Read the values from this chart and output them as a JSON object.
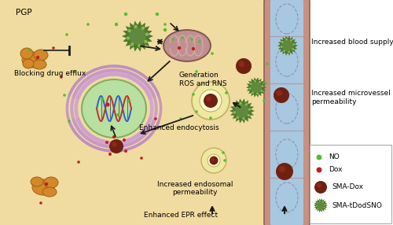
{
  "bg_color": "#FFFFFF",
  "cell_color": "#F0DCA0",
  "cell_edge_color": "#C8A860",
  "vessel_outer_color": "#C89080",
  "vessel_lumen_color": "#A8C8E0",
  "vessel_divider_color": "#B09090",
  "nucleus_color": "#B8E0A0",
  "nucleus_edge": "#80B060",
  "er_color": "#C8A0C8",
  "mito_color": "#C09090",
  "mito_inner": "#D4A8A8",
  "endosome_color": "#F0ECC0",
  "endosome_edge": "#C0B060",
  "pgp_color": "#D4882A",
  "pgp_edge": "#A06010",
  "legend_box_color": "#FFFFFF",
  "NO_color": "#50C030",
  "Dox_color": "#C02020",
  "SMADox_color": "#702010",
  "SMAtDodSNO_color": "#507830",
  "SMAtDodSNO_spike": "#406020",
  "SMAtDodSNO_dot": "#80C040",
  "arrow_color": "#1A1A1A",
  "labels": {
    "pgp": "PGP",
    "blocking": "Blocking drug efflux",
    "generation": "Generation\nROS and RNS",
    "endocytosis": "Enhanced endocytosis",
    "endosomal": "Increased endosomal\npermeability",
    "epr": "Enhanced EPR effect",
    "microvessel": "Increased microvessel\npermeability",
    "blood": "Increased blood supply",
    "legend_NO": "NO",
    "legend_Dox": "Dox",
    "legend_SMADox": "SMA-Dox",
    "legend_SMAtDodSNO": "SMA-tDodSNO"
  },
  "font_size": 6.5
}
